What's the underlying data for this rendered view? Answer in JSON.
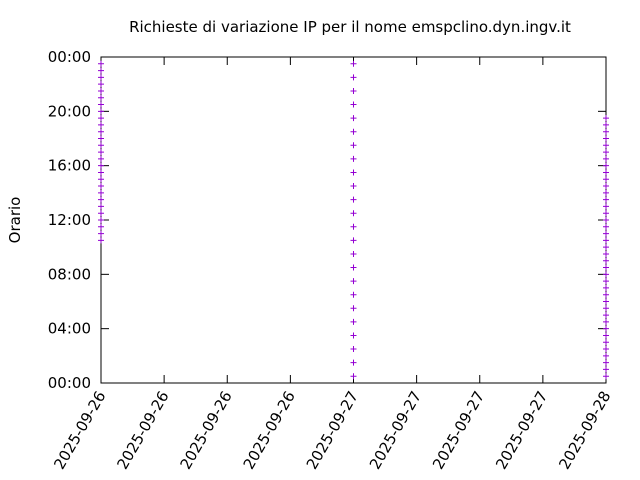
{
  "chart_data": {
    "type": "scatter",
    "title": "Richieste di variazione IP per il nome emspclino.dyn.ingv.it",
    "y_label": "Orario",
    "color": "#9400d3",
    "x": [
      0,
      0,
      0,
      0,
      0,
      0,
      0,
      0,
      0,
      0,
      0,
      0,
      0,
      0,
      0,
      0,
      0,
      0,
      0,
      0,
      0,
      0,
      0,
      0,
      0,
      0,
      0,
      24,
      24,
      24,
      24,
      24,
      24,
      24,
      24,
      24,
      24,
      24,
      24,
      24,
      24,
      24,
      24,
      24,
      24,
      24,
      24,
      24,
      24,
      24,
      24,
      48,
      48,
      48,
      48,
      48,
      48,
      48,
      48,
      48,
      48,
      48,
      48,
      48,
      48,
      48,
      48,
      48,
      48,
      48,
      48,
      48,
      48,
      48,
      48,
      48,
      48,
      48,
      48,
      48,
      48,
      48,
      48,
      48,
      48,
      48,
      48,
      48,
      48,
      48
    ],
    "values": [
      10.5,
      11,
      11.5,
      12,
      12.5,
      13,
      13.5,
      14,
      14.5,
      15,
      15.5,
      16,
      16.5,
      17,
      17.5,
      18,
      18.5,
      19,
      19.5,
      20,
      20.5,
      21,
      21.5,
      22,
      22.5,
      23,
      23.5,
      0.5,
      1.5,
      2.5,
      3.5,
      4.5,
      5.5,
      6.5,
      7.5,
      8.5,
      9.5,
      10.5,
      11.5,
      12.5,
      13.5,
      14.5,
      15.5,
      16.5,
      17.5,
      18.5,
      19.5,
      20.5,
      21.5,
      22.5,
      23.5,
      0.5,
      1,
      1.5,
      2,
      2.5,
      3,
      3.5,
      4,
      4.5,
      5,
      5.5,
      6,
      6.5,
      7,
      7.5,
      8,
      8.5,
      9,
      9.5,
      10,
      10.5,
      11,
      11.5,
      12,
      12.5,
      13,
      13.5,
      14,
      14.5,
      15,
      15.5,
      16,
      16.5,
      17,
      17.5,
      18,
      18.5,
      19,
      19.5
    ],
    "xlim": [
      0,
      48
    ],
    "xticks": [
      {
        "value": 0,
        "label": "2025-09-26"
      },
      {
        "value": 6,
        "label": "2025-09-26"
      },
      {
        "value": 12,
        "label": "2025-09-26"
      },
      {
        "value": 18,
        "label": "2025-09-26"
      },
      {
        "value": 24,
        "label": "2025-09-27"
      },
      {
        "value": 30,
        "label": "2025-09-27"
      },
      {
        "value": 36,
        "label": "2025-09-27"
      },
      {
        "value": 42,
        "label": "2025-09-27"
      },
      {
        "value": 48,
        "label": "2025-09-28"
      }
    ],
    "ylim": [
      0,
      24
    ],
    "yticks": [
      {
        "value": 0,
        "label": "00:00"
      },
      {
        "value": 4,
        "label": "04:00"
      },
      {
        "value": 8,
        "label": "08:00"
      },
      {
        "value": 12,
        "label": "12:00"
      },
      {
        "value": 16,
        "label": "16:00"
      },
      {
        "value": 20,
        "label": "20:00"
      },
      {
        "value": 24,
        "label": "00:00"
      }
    ]
  }
}
